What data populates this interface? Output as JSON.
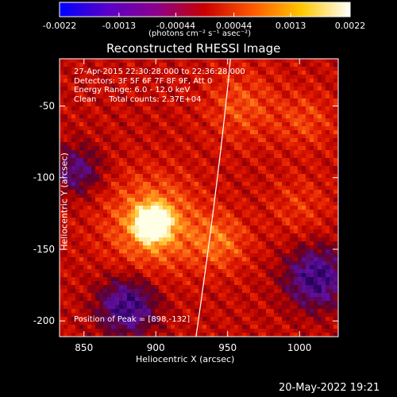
{
  "colorbar": {
    "tick_labels": [
      "-0.0022",
      "-0.0013",
      "-0.00044",
      "0.00044",
      "0.0013",
      "0.0022"
    ],
    "tick_values": [
      -0.0022,
      -0.0013,
      -0.00044,
      0.00044,
      0.0013,
      0.0022
    ],
    "range": [
      -0.0022,
      0.0022
    ],
    "unit_label": "(photons cm⁻² s⁻¹ asec⁻²)",
    "colors": [
      "#0000ff",
      "#5a00c8",
      "#8c008c",
      "#c80000",
      "#ff5a00",
      "#ffc800",
      "#ffffff"
    ]
  },
  "chart_data": {
    "type": "heatmap",
    "title": "Reconstructed RHESSI Image",
    "xlabel": "Heliocentric X (arcsec)",
    "ylabel": "Heliocentric Y (arcsec)",
    "xlim": [
      833,
      1027
    ],
    "ylim": [
      -211,
      -17
    ],
    "x_ticks": [
      850,
      900,
      950,
      1000
    ],
    "y_ticks": [
      -200,
      -150,
      -100,
      -50
    ],
    "x_tick_labels": [
      "850",
      "900",
      "950",
      "1000"
    ],
    "y_tick_labels": [
      "-200",
      "-150",
      "-100",
      "-50"
    ],
    "peak": [
      898,
      -132
    ],
    "info_lines": [
      "27-Apr-2015 22:30:28.000 to 22:36:28.000",
      "Detectors: 3F 5F 6F 7F 8F 9F, Att 0",
      "Energy Range: 6.0 - 12.0 keV",
      "Clean     Total counts: 2.37E+04"
    ],
    "peak_label": "Position of Peak = [898,-132]",
    "limb_points": [
      [
        952,
        -17
      ],
      [
        944,
        -100
      ],
      [
        928,
        -211
      ]
    ],
    "sources": [
      {
        "x": 898,
        "y": -132,
        "amp": 0.86,
        "sigma": 7
      },
      {
        "x": 898,
        "y": -132,
        "amp": 0.35,
        "sigma": 22
      },
      {
        "x": 945,
        "y": -145,
        "amp": 0.22,
        "sigma": 14
      },
      {
        "x": 960,
        "y": -50,
        "amp": 0.18,
        "sigma": 18
      },
      {
        "x": 1005,
        "y": -60,
        "amp": 0.15,
        "sigma": 14
      },
      {
        "x": 1000,
        "y": -120,
        "amp": 0.12,
        "sigma": 15
      },
      {
        "x": 880,
        "y": -190,
        "amp": -0.45,
        "sigma": 14
      },
      {
        "x": 845,
        "y": -95,
        "amp": -0.3,
        "sigma": 12
      },
      {
        "x": 1012,
        "y": -170,
        "amp": -0.45,
        "sigma": 15
      }
    ]
  },
  "footer": {
    "timestamp": "20-May-2022 19:21"
  }
}
